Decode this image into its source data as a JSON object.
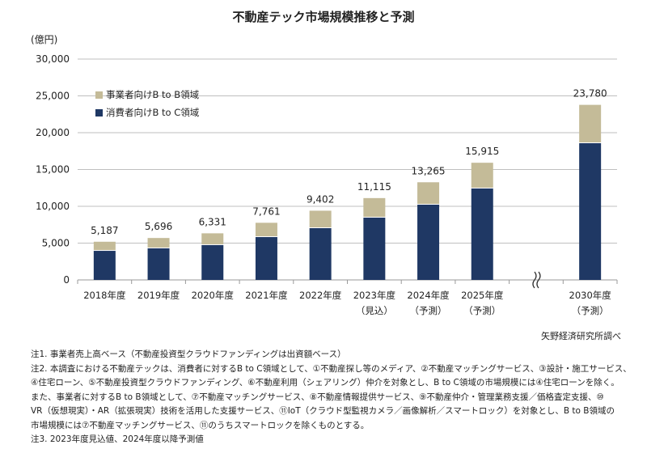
{
  "title": "不動産テック市場規模推移と予測",
  "unit": "(億円)",
  "source": "矢野経済研究所調べ",
  "colors": {
    "b2b": "#c4bb98",
    "b2c": "#1f3864",
    "grid": "#bfbfbf"
  },
  "chart_data": {
    "type": "bar",
    "stacked": true,
    "title": "不動産テック市場規模推移と予測",
    "ylabel": "(億円)",
    "ylim": [
      0,
      30000
    ],
    "yticks": [
      "0",
      "5,000",
      "10,000",
      "15,000",
      "20,000",
      "25,000",
      "30,000"
    ],
    "grid": true,
    "legend": "top-left",
    "axis_break_between": [
      "2025年度",
      "2030年度"
    ],
    "categories": [
      {
        "label": "2018年度",
        "sub": ""
      },
      {
        "label": "2019年度",
        "sub": ""
      },
      {
        "label": "2020年度",
        "sub": ""
      },
      {
        "label": "2021年度",
        "sub": ""
      },
      {
        "label": "2022年度",
        "sub": ""
      },
      {
        "label": "2023年度",
        "sub": "（見込）"
      },
      {
        "label": "2024年度",
        "sub": "（予測）"
      },
      {
        "label": "2025年度",
        "sub": "（予測）"
      },
      {
        "label": "2030年度",
        "sub": "（予測）"
      }
    ],
    "totals": [
      5187,
      5696,
      6331,
      7761,
      9402,
      11115,
      13265,
      15915,
      23780
    ],
    "total_labels": [
      "5,187",
      "5,696",
      "6,331",
      "7,761",
      "9,402",
      "11,115",
      "13,265",
      "15,915",
      "23,780"
    ],
    "series": [
      {
        "name": "消費者向けB to C領域",
        "values": [
          3950,
          4290,
          4730,
          5820,
          7030,
          8460,
          10220,
          12420,
          18570
        ]
      },
      {
        "name": "事業者向けB to B領域",
        "values": [
          1237,
          1406,
          1601,
          1941,
          2372,
          2655,
          3045,
          3495,
          5210
        ]
      }
    ]
  },
  "notes": [
    "注1. 事業者売上高ベース（不動産投資型クラウドファンディングは出資額ベース）",
    "注2. 本調査における不動産テックは、消費者に対するB to C領域として、①不動産探し等のメディア、②不動産マッチングサービス、③設計・施工サービス、",
    "④住宅ローン、⑤不動産投資型クラウドファンディング、⑥不動産利用（シェアリング）仲介を対象とし、B to C領域の市場規模には④住宅ローンを除く。",
    "また、事業者に対するB to B領域として、⑦不動産マッチングサービス、⑧不動産情報提供サービス、⑨不動産仲介・管理業務支援／価格査定支援、⑩",
    "VR（仮想現実）・AR（拡張現実）技術を活用した支援サービス、⑪IoT（クラウド型監視カメラ／画像解析／スマートロック）を対象とし、B to B領域の",
    "市場規模には⑦不動産マッチングサービス、⑪のうちスマートロックを除くものとする。",
    "注3. 2023年度見込値、2024年度以降予測値"
  ]
}
